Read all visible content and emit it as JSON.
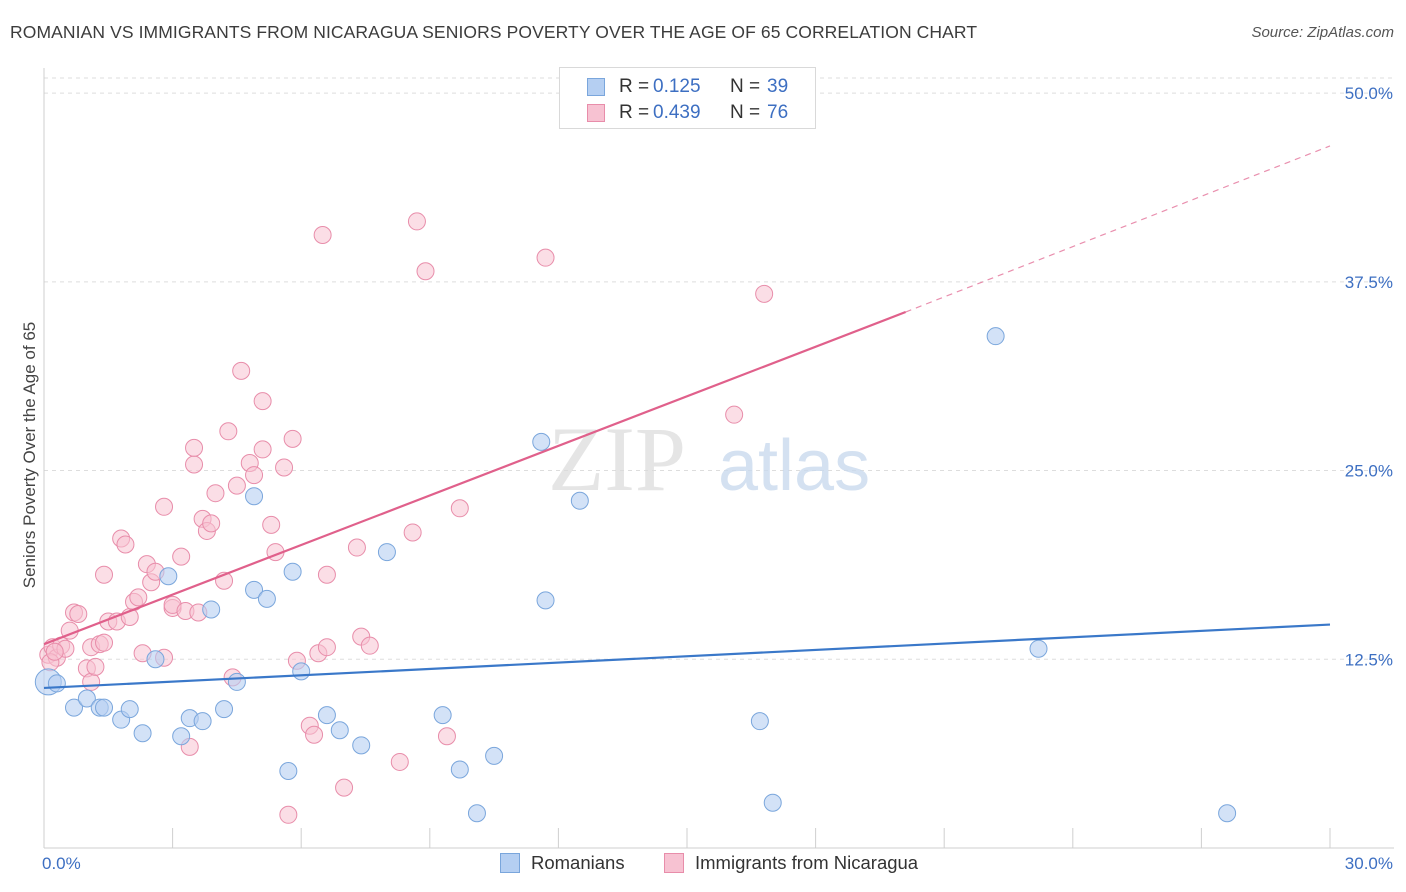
{
  "title": "ROMANIAN VS IMMIGRANTS FROM NICARAGUA SENIORS POVERTY OVER THE AGE OF 65 CORRELATION CHART",
  "source": "Source: ZipAtlas.com",
  "watermark": {
    "zip": "ZIP",
    "atlas": "atlas"
  },
  "legend_top": [
    {
      "r_label": "R =",
      "r_value": "0.125",
      "n_label": "N =",
      "n_value": "39"
    },
    {
      "r_label": "R =",
      "r_value": "0.439",
      "n_label": "N =",
      "n_value": "76"
    }
  ],
  "legend_bottom": [
    "Romanians",
    "Immigrants from Nicaragua"
  ],
  "colors": {
    "romanians_fill": "#b5cff2",
    "romanians_stroke": "#7aa6dc",
    "romanians_line": "#3a78c9",
    "nicaragua_fill": "#f7c2d2",
    "nicaragua_stroke": "#e88daa",
    "nicaragua_line": "#e0608b",
    "tick_label": "#3d6fc2",
    "grid": "#dddddd"
  },
  "chart_data": {
    "type": "scatter",
    "title": "ROMANIAN VS IMMIGRANTS FROM NICARAGUA SENIORS POVERTY OVER THE AGE OF 65 CORRELATION CHART",
    "xlabel": "",
    "ylabel": "Seniors Poverty Over the Age of 65",
    "xlim": [
      0,
      30
    ],
    "ylim": [
      0,
      51
    ],
    "x_tick_labels": [
      "0.0%",
      "30.0%"
    ],
    "y_ticks": [
      12.5,
      25.0,
      37.5,
      50.0
    ],
    "y_tick_labels": [
      "12.5%",
      "25.0%",
      "37.5%",
      "50.0%"
    ],
    "grid": true,
    "legend_position": "top-center",
    "series": [
      {
        "name": "Romanians",
        "R": 0.125,
        "N": 39,
        "trend": {
          "x0": 0,
          "y0": 10.6,
          "x1": 30,
          "y1": 14.8
        },
        "points": [
          [
            0.1,
            11.0
          ],
          [
            0.3,
            10.9
          ],
          [
            0.7,
            9.3
          ],
          [
            1.0,
            9.9
          ],
          [
            1.3,
            9.3
          ],
          [
            1.4,
            9.3
          ],
          [
            1.8,
            8.5
          ],
          [
            2.0,
            9.2
          ],
          [
            2.3,
            7.6
          ],
          [
            2.6,
            12.5
          ],
          [
            2.9,
            18.0
          ],
          [
            3.2,
            7.4
          ],
          [
            3.4,
            8.6
          ],
          [
            3.7,
            8.4
          ],
          [
            3.9,
            15.8
          ],
          [
            4.2,
            9.2
          ],
          [
            4.5,
            11.0
          ],
          [
            4.9,
            17.1
          ],
          [
            4.9,
            23.3
          ],
          [
            5.2,
            16.5
          ],
          [
            5.7,
            5.1
          ],
          [
            5.8,
            18.3
          ],
          [
            6.0,
            11.7
          ],
          [
            6.6,
            8.8
          ],
          [
            6.9,
            7.8
          ],
          [
            7.4,
            6.8
          ],
          [
            8.0,
            19.6
          ],
          [
            9.3,
            8.8
          ],
          [
            9.7,
            5.2
          ],
          [
            10.1,
            2.3
          ],
          [
            10.5,
            6.1
          ],
          [
            11.6,
            26.9
          ],
          [
            11.7,
            16.4
          ],
          [
            12.5,
            23.0
          ],
          [
            16.7,
            8.4
          ],
          [
            17.0,
            3.0
          ],
          [
            22.2,
            33.9
          ],
          [
            23.2,
            13.2
          ],
          [
            27.6,
            2.3
          ]
        ]
      },
      {
        "name": "Immigrants from Nicaragua",
        "R": 0.439,
        "N": 76,
        "trend": {
          "x0": 0,
          "y0": 13.5,
          "x1": 20.1,
          "y1": 35.5,
          "dashed_to_x": 30,
          "dashed_to_y": 46.5
        },
        "points": [
          [
            0.1,
            12.8
          ],
          [
            0.2,
            13.3
          ],
          [
            0.3,
            12.6
          ],
          [
            0.4,
            13.4
          ],
          [
            0.5,
            13.2
          ],
          [
            0.6,
            14.4
          ],
          [
            0.7,
            15.6
          ],
          [
            0.8,
            15.5
          ],
          [
            1.0,
            11.9
          ],
          [
            1.1,
            11.0
          ],
          [
            1.1,
            13.3
          ],
          [
            1.2,
            12.0
          ],
          [
            1.3,
            13.5
          ],
          [
            1.4,
            13.6
          ],
          [
            1.4,
            18.1
          ],
          [
            1.5,
            15.0
          ],
          [
            1.7,
            15.0
          ],
          [
            1.8,
            20.5
          ],
          [
            1.9,
            20.1
          ],
          [
            2.0,
            15.3
          ],
          [
            2.1,
            16.3
          ],
          [
            2.2,
            16.6
          ],
          [
            2.3,
            12.9
          ],
          [
            2.4,
            18.8
          ],
          [
            2.5,
            17.6
          ],
          [
            2.6,
            18.3
          ],
          [
            2.8,
            12.6
          ],
          [
            2.8,
            22.6
          ],
          [
            3.0,
            15.9
          ],
          [
            3.0,
            16.1
          ],
          [
            3.2,
            19.3
          ],
          [
            3.3,
            15.7
          ],
          [
            3.4,
            6.7
          ],
          [
            3.5,
            25.4
          ],
          [
            3.5,
            26.5
          ],
          [
            3.6,
            15.6
          ],
          [
            3.7,
            21.8
          ],
          [
            3.8,
            21.0
          ],
          [
            3.9,
            21.5
          ],
          [
            4.0,
            23.5
          ],
          [
            4.2,
            17.7
          ],
          [
            4.3,
            27.6
          ],
          [
            4.4,
            11.3
          ],
          [
            4.5,
            24.0
          ],
          [
            4.6,
            31.6
          ],
          [
            4.8,
            25.5
          ],
          [
            4.9,
            24.7
          ],
          [
            5.1,
            26.4
          ],
          [
            5.1,
            29.6
          ],
          [
            5.3,
            21.4
          ],
          [
            5.4,
            19.6
          ],
          [
            5.6,
            25.2
          ],
          [
            5.7,
            2.2
          ],
          [
            5.8,
            27.1
          ],
          [
            5.9,
            12.4
          ],
          [
            6.2,
            8.1
          ],
          [
            6.3,
            7.5
          ],
          [
            6.4,
            12.9
          ],
          [
            6.6,
            18.1
          ],
          [
            6.6,
            13.3
          ],
          [
            7.0,
            4.0
          ],
          [
            7.3,
            19.9
          ],
          [
            7.4,
            14.0
          ],
          [
            7.6,
            13.4
          ],
          [
            8.3,
            5.7
          ],
          [
            8.6,
            20.9
          ],
          [
            8.7,
            41.5
          ],
          [
            8.9,
            38.2
          ],
          [
            9.4,
            7.4
          ],
          [
            9.7,
            22.5
          ],
          [
            6.5,
            40.6
          ],
          [
            11.7,
            39.1
          ],
          [
            16.1,
            28.7
          ],
          [
            16.8,
            36.7
          ],
          [
            0.15,
            12.3
          ],
          [
            0.25,
            13.0
          ]
        ]
      }
    ]
  }
}
